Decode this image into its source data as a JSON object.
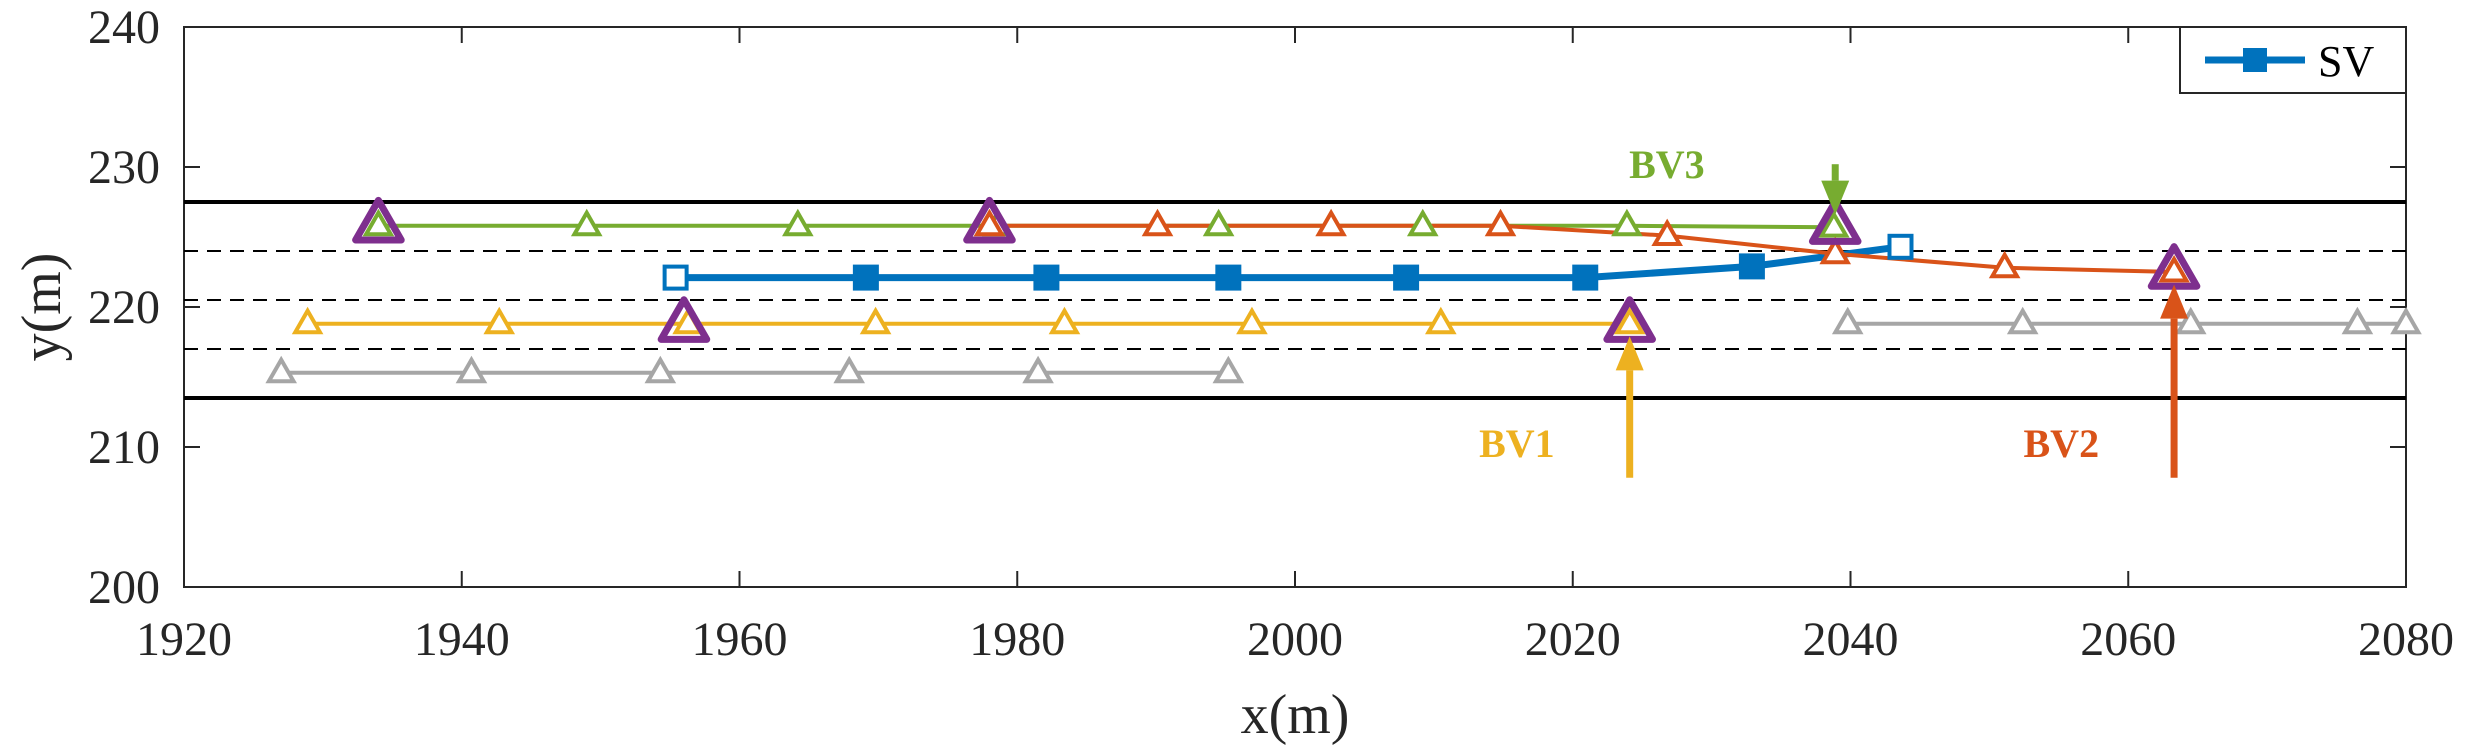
{
  "chart_data": {
    "type": "line",
    "title": "",
    "xlabel": "x(m)",
    "ylabel": "y(m)",
    "xlim": [
      1920,
      2080
    ],
    "ylim": [
      200,
      240
    ],
    "xticks": [
      1920,
      1940,
      1960,
      1980,
      2000,
      2020,
      2040,
      2060,
      2080
    ],
    "yticks": [
      200,
      210,
      220,
      230,
      240
    ],
    "grid": false,
    "legend": {
      "position": "top-right",
      "entries": [
        "SV"
      ]
    },
    "lane_lines": [
      {
        "y": 213.5,
        "style": "solid"
      },
      {
        "y": 217.0,
        "style": "dashed"
      },
      {
        "y": 220.5,
        "style": "dashed"
      },
      {
        "y": 224.0,
        "style": "dashed"
      },
      {
        "y": 227.5,
        "style": "solid"
      }
    ],
    "series": [
      {
        "name": "SV",
        "color": "#0072BD",
        "marker": "square",
        "x": [
          1955.4,
          1969.1,
          1982.1,
          1995.2,
          2008.0,
          2020.9,
          2032.9,
          2043.6
        ],
        "y": [
          222.1,
          222.1,
          222.1,
          222.1,
          222.1,
          222.1,
          222.9,
          224.3
        ]
      },
      {
        "color": "#77AC30",
        "marker": "triangle",
        "x": [
          1934.0,
          1949.0,
          1964.2,
          1978.6,
          1994.5,
          2009.2,
          2023.9,
          2038.8
        ],
        "y": [
          225.8,
          225.8,
          225.8,
          225.8,
          225.8,
          225.8,
          225.8,
          225.7
        ]
      },
      {
        "color": "#EDB120",
        "marker": "triangle",
        "x": [
          1928.9,
          1942.7,
          1956.3,
          1969.8,
          1983.4,
          1996.9,
          2010.5,
          2024.1
        ],
        "y": [
          218.8,
          218.8,
          218.8,
          218.8,
          218.8,
          218.8,
          218.8,
          218.8
        ]
      },
      {
        "color": "#D95319",
        "marker": "triangle",
        "x": [
          1978.0,
          1990.1,
          2002.6,
          2014.8,
          2026.8,
          2038.9,
          2051.1,
          2063.3
        ],
        "y": [
          225.8,
          225.8,
          225.8,
          225.8,
          225.1,
          223.8,
          222.8,
          222.5
        ]
      },
      {
        "color": "#A6A6A6",
        "marker": "triangle",
        "x": [
          1927.0,
          1940.7,
          1954.3,
          1967.9,
          1981.5,
          1995.2
        ],
        "y": [
          215.3,
          215.3,
          215.3,
          215.3,
          215.3,
          215.3
        ]
      },
      {
        "color": "#A6A6A6",
        "marker": "triangle",
        "x": [
          2039.8,
          2052.4,
          2064.5,
          2076.5,
          2080.0
        ],
        "y": [
          218.8,
          218.8,
          218.8,
          218.8,
          218.8
        ]
      }
    ],
    "highlight_points": {
      "color": "#7E2F8E",
      "marker": "triangle",
      "x": [
        1934.0,
        1956.0,
        1978.0,
        2024.1,
        2038.9,
        2063.3
      ],
      "y": [
        225.9,
        218.8,
        225.9,
        218.8,
        225.8,
        222.6
      ]
    },
    "annotations": [
      {
        "text": "BV3",
        "color": "#77AC30",
        "arrow": {
          "x": 2038.9,
          "y_from": 230.2,
          "y_to": 226.6,
          "direction": "down"
        },
        "label_pos": {
          "x": 2029.5,
          "y": 229.2
        }
      },
      {
        "text": "BV1",
        "color": "#EDB120",
        "arrow": {
          "x": 2024.1,
          "y_from": 207.8,
          "y_to": 217.9,
          "direction": "up"
        },
        "label_pos": {
          "x": 2018.7,
          "y": 209.3
        }
      },
      {
        "text": "BV2",
        "color": "#D95319",
        "arrow": {
          "x": 2063.3,
          "y_from": 207.8,
          "y_to": 221.6,
          "direction": "up"
        },
        "label_pos": {
          "x": 2057.9,
          "y": 209.3
        }
      }
    ]
  }
}
